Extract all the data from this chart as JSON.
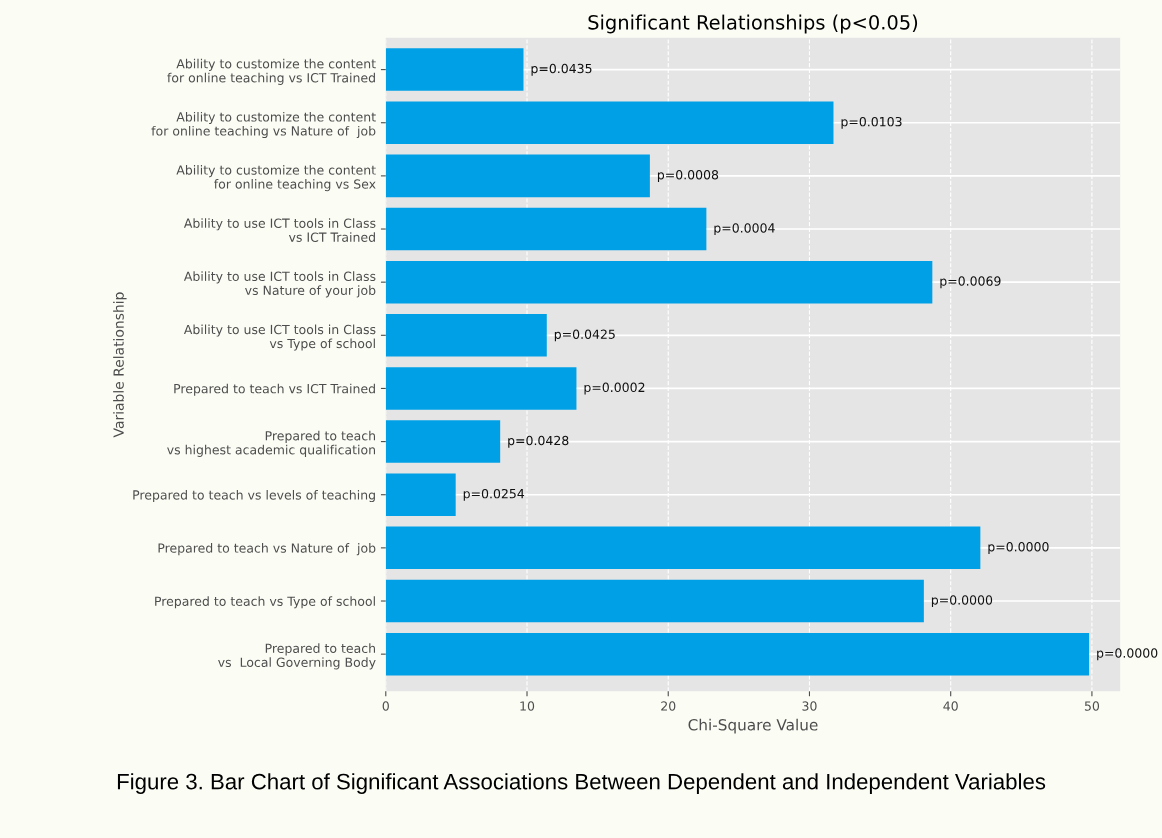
{
  "chart_data": {
    "type": "bar",
    "orientation": "horizontal",
    "title": "Significant Relationships (p<0.05)",
    "xlabel": "Chi-Square Value",
    "ylabel": "Variable Relationship",
    "categories": [
      "Ability to customize the content\nfor online teaching vs ICT Trained",
      "Ability to customize the content\nfor online teaching vs Nature of  job",
      "Ability to customize the content\nfor online teaching vs Sex",
      "Ability to use ICT tools in Class\nvs ICT Trained",
      "Ability to use ICT tools in Class\nvs Nature of your job",
      "Ability to use ICT tools in Class\nvs Type of school",
      "Prepared to teach vs ICT Trained",
      "Prepared to teach\nvs highest academic qualification",
      "Prepared to teach vs levels of teaching",
      "Prepared to teach vs Nature of  job",
      "Prepared to teach vs Type of school",
      "Prepared to teach\nvs  Local Governing Body"
    ],
    "values": [
      9.75,
      31.7,
      18.7,
      22.7,
      38.7,
      11.4,
      13.5,
      8.1,
      4.95,
      42.1,
      38.1,
      49.8
    ],
    "color": "#00a0e6",
    "xlim": [
      0,
      52
    ],
    "xticks": [
      0,
      10,
      20,
      30,
      40,
      50
    ],
    "grid": true,
    "annotations": [
      {
        "text": "p=0.0435",
        "x": 9.75,
        "y": "Ability to customize the content\nfor online teaching vs ICT Trained"
      },
      {
        "text": "p=0.0103",
        "x": 31.7,
        "y": "Ability to customize the content\nfor online teaching vs Nature of  job"
      },
      {
        "text": "p=0.0008",
        "x": 18.7,
        "y": "Ability to customize the content\nfor online teaching vs Sex"
      },
      {
        "text": "p=0.0004",
        "x": 22.7,
        "y": "Ability to use ICT tools in Class\nvs ICT Trained"
      },
      {
        "text": "p=0.0069",
        "x": 38.7,
        "y": "Ability to use ICT tools in Class\nvs Nature of your job"
      },
      {
        "text": "p=0.0425",
        "x": 11.4,
        "y": "Ability to use ICT tools in Class\nvs Type of school"
      },
      {
        "text": "p=0.0002",
        "x": 13.5,
        "y": "Prepared to teach vs ICT Trained"
      },
      {
        "text": "p=0.0428",
        "x": 8.1,
        "y": "Prepared to teach\nvs highest academic qualification"
      },
      {
        "text": "p=0.0254",
        "x": 4.95,
        "y": "Prepared to teach vs levels of teaching"
      },
      {
        "text": "p=0.0000",
        "x": 42.1,
        "y": "Prepared to teach vs Nature of  job"
      },
      {
        "text": "p=0.0000",
        "x": 38.1,
        "y": "Prepared to teach vs Type of school"
      },
      {
        "text": "p=0.0000",
        "x": 49.8,
        "y": "Prepared to teach\nvs  Local Governing Body"
      },
      "Figure 3. Bar Chart of Significant Associations Between Dependent and Independent Variables"
    ]
  }
}
